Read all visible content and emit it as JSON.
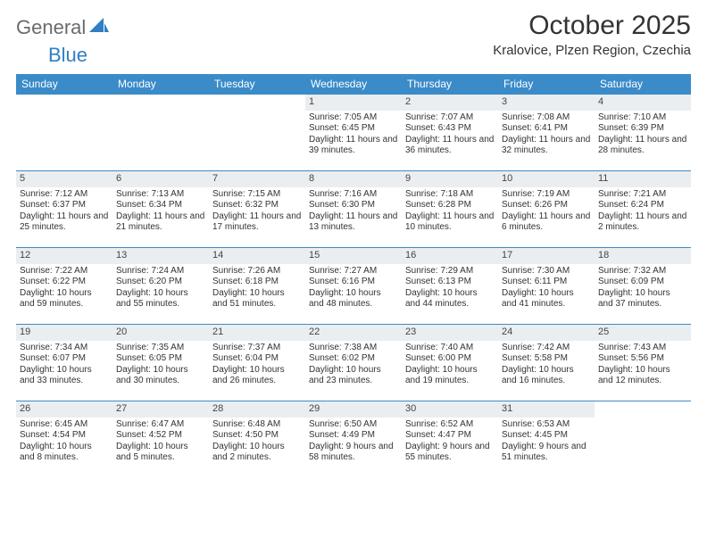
{
  "logo": {
    "text1": "General",
    "text2": "Blue"
  },
  "title": "October 2025",
  "location": "Kralovice, Plzen Region, Czechia",
  "colors": {
    "header_bg": "#3b8bc9",
    "header_fg": "#ffffff",
    "row_border": "#3b8bc9",
    "daynum_bg": "#ebeef0",
    "text": "#333333",
    "logo_gray": "#6b6b6b",
    "logo_blue": "#2f7fc2"
  },
  "weekdays": [
    "Sunday",
    "Monday",
    "Tuesday",
    "Wednesday",
    "Thursday",
    "Friday",
    "Saturday"
  ],
  "weeks": [
    [
      {
        "n": "",
        "sr": "",
        "ss": "",
        "dl": ""
      },
      {
        "n": "",
        "sr": "",
        "ss": "",
        "dl": ""
      },
      {
        "n": "",
        "sr": "",
        "ss": "",
        "dl": ""
      },
      {
        "n": "1",
        "sr": "Sunrise: 7:05 AM",
        "ss": "Sunset: 6:45 PM",
        "dl": "Daylight: 11 hours and 39 minutes."
      },
      {
        "n": "2",
        "sr": "Sunrise: 7:07 AM",
        "ss": "Sunset: 6:43 PM",
        "dl": "Daylight: 11 hours and 36 minutes."
      },
      {
        "n": "3",
        "sr": "Sunrise: 7:08 AM",
        "ss": "Sunset: 6:41 PM",
        "dl": "Daylight: 11 hours and 32 minutes."
      },
      {
        "n": "4",
        "sr": "Sunrise: 7:10 AM",
        "ss": "Sunset: 6:39 PM",
        "dl": "Daylight: 11 hours and 28 minutes."
      }
    ],
    [
      {
        "n": "5",
        "sr": "Sunrise: 7:12 AM",
        "ss": "Sunset: 6:37 PM",
        "dl": "Daylight: 11 hours and 25 minutes."
      },
      {
        "n": "6",
        "sr": "Sunrise: 7:13 AM",
        "ss": "Sunset: 6:34 PM",
        "dl": "Daylight: 11 hours and 21 minutes."
      },
      {
        "n": "7",
        "sr": "Sunrise: 7:15 AM",
        "ss": "Sunset: 6:32 PM",
        "dl": "Daylight: 11 hours and 17 minutes."
      },
      {
        "n": "8",
        "sr": "Sunrise: 7:16 AM",
        "ss": "Sunset: 6:30 PM",
        "dl": "Daylight: 11 hours and 13 minutes."
      },
      {
        "n": "9",
        "sr": "Sunrise: 7:18 AM",
        "ss": "Sunset: 6:28 PM",
        "dl": "Daylight: 11 hours and 10 minutes."
      },
      {
        "n": "10",
        "sr": "Sunrise: 7:19 AM",
        "ss": "Sunset: 6:26 PM",
        "dl": "Daylight: 11 hours and 6 minutes."
      },
      {
        "n": "11",
        "sr": "Sunrise: 7:21 AM",
        "ss": "Sunset: 6:24 PM",
        "dl": "Daylight: 11 hours and 2 minutes."
      }
    ],
    [
      {
        "n": "12",
        "sr": "Sunrise: 7:22 AM",
        "ss": "Sunset: 6:22 PM",
        "dl": "Daylight: 10 hours and 59 minutes."
      },
      {
        "n": "13",
        "sr": "Sunrise: 7:24 AM",
        "ss": "Sunset: 6:20 PM",
        "dl": "Daylight: 10 hours and 55 minutes."
      },
      {
        "n": "14",
        "sr": "Sunrise: 7:26 AM",
        "ss": "Sunset: 6:18 PM",
        "dl": "Daylight: 10 hours and 51 minutes."
      },
      {
        "n": "15",
        "sr": "Sunrise: 7:27 AM",
        "ss": "Sunset: 6:16 PM",
        "dl": "Daylight: 10 hours and 48 minutes."
      },
      {
        "n": "16",
        "sr": "Sunrise: 7:29 AM",
        "ss": "Sunset: 6:13 PM",
        "dl": "Daylight: 10 hours and 44 minutes."
      },
      {
        "n": "17",
        "sr": "Sunrise: 7:30 AM",
        "ss": "Sunset: 6:11 PM",
        "dl": "Daylight: 10 hours and 41 minutes."
      },
      {
        "n": "18",
        "sr": "Sunrise: 7:32 AM",
        "ss": "Sunset: 6:09 PM",
        "dl": "Daylight: 10 hours and 37 minutes."
      }
    ],
    [
      {
        "n": "19",
        "sr": "Sunrise: 7:34 AM",
        "ss": "Sunset: 6:07 PM",
        "dl": "Daylight: 10 hours and 33 minutes."
      },
      {
        "n": "20",
        "sr": "Sunrise: 7:35 AM",
        "ss": "Sunset: 6:05 PM",
        "dl": "Daylight: 10 hours and 30 minutes."
      },
      {
        "n": "21",
        "sr": "Sunrise: 7:37 AM",
        "ss": "Sunset: 6:04 PM",
        "dl": "Daylight: 10 hours and 26 minutes."
      },
      {
        "n": "22",
        "sr": "Sunrise: 7:38 AM",
        "ss": "Sunset: 6:02 PM",
        "dl": "Daylight: 10 hours and 23 minutes."
      },
      {
        "n": "23",
        "sr": "Sunrise: 7:40 AM",
        "ss": "Sunset: 6:00 PM",
        "dl": "Daylight: 10 hours and 19 minutes."
      },
      {
        "n": "24",
        "sr": "Sunrise: 7:42 AM",
        "ss": "Sunset: 5:58 PM",
        "dl": "Daylight: 10 hours and 16 minutes."
      },
      {
        "n": "25",
        "sr": "Sunrise: 7:43 AM",
        "ss": "Sunset: 5:56 PM",
        "dl": "Daylight: 10 hours and 12 minutes."
      }
    ],
    [
      {
        "n": "26",
        "sr": "Sunrise: 6:45 AM",
        "ss": "Sunset: 4:54 PM",
        "dl": "Daylight: 10 hours and 8 minutes."
      },
      {
        "n": "27",
        "sr": "Sunrise: 6:47 AM",
        "ss": "Sunset: 4:52 PM",
        "dl": "Daylight: 10 hours and 5 minutes."
      },
      {
        "n": "28",
        "sr": "Sunrise: 6:48 AM",
        "ss": "Sunset: 4:50 PM",
        "dl": "Daylight: 10 hours and 2 minutes."
      },
      {
        "n": "29",
        "sr": "Sunrise: 6:50 AM",
        "ss": "Sunset: 4:49 PM",
        "dl": "Daylight: 9 hours and 58 minutes."
      },
      {
        "n": "30",
        "sr": "Sunrise: 6:52 AM",
        "ss": "Sunset: 4:47 PM",
        "dl": "Daylight: 9 hours and 55 minutes."
      },
      {
        "n": "31",
        "sr": "Sunrise: 6:53 AM",
        "ss": "Sunset: 4:45 PM",
        "dl": "Daylight: 9 hours and 51 minutes."
      },
      {
        "n": "",
        "sr": "",
        "ss": "",
        "dl": ""
      }
    ]
  ]
}
